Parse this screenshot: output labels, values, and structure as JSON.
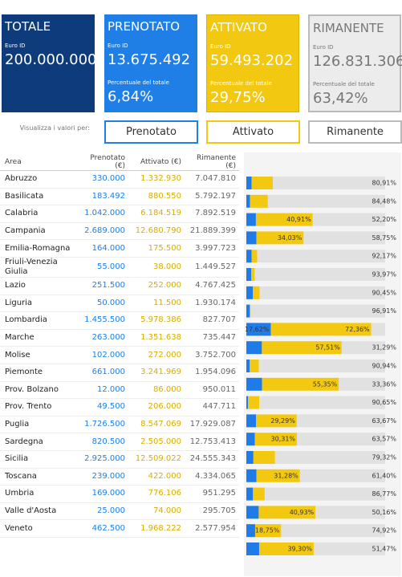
{
  "cards": [
    {
      "title": "TOTALE",
      "unit": "Euro ID",
      "value": "200.000.000"
    },
    {
      "title": "PRENOTATO",
      "unit": "Euro ID",
      "value": "13.675.492",
      "pct_label": "Percentuale del totale",
      "pct": "6,84%"
    },
    {
      "title": "ATTIVATO",
      "unit": "Euro ID",
      "value": "59.493.202",
      "pct_label": "Percentuale del totale",
      "pct": "29,75%"
    },
    {
      "title": "RIMANENTE",
      "unit": "Euro ID",
      "value": "126.831.306",
      "pct_label": "Percentuale del totale",
      "pct": "63,42%"
    }
  ],
  "selector": {
    "label": "Visualizza i valori per:",
    "buttons": [
      "Prenotato",
      "Attivato",
      "Rimanente"
    ]
  },
  "table": {
    "columns": [
      "Area",
      "Prenotato (€)",
      "Attivato (€)",
      "Rimanente (€)"
    ],
    "rows": [
      {
        "area": "Abruzzo",
        "prenotato": "330.000",
        "attivato": "1.332.930",
        "rimanente": "7.047.810",
        "rimanente_pct": "80,91%"
      },
      {
        "area": "Basilicata",
        "prenotato": "183.492",
        "attivato": "880.550",
        "rimanente": "5.792.197",
        "rimanente_pct": "84,48%"
      },
      {
        "area": "Calabria",
        "prenotato": "1.042.000",
        "attivato": "6.184.519",
        "rimanente": "7.892.519",
        "attivato_pct": "40,91%",
        "rimanente_pct": "52,20%"
      },
      {
        "area": "Campania",
        "prenotato": "2.689.000",
        "attivato": "12.680.790",
        "rimanente": "21.889.399",
        "attivato_pct": "34,03%",
        "rimanente_pct": "58,75%"
      },
      {
        "area": "Emilia-Romagna",
        "prenotato": "164.000",
        "attivato": "175.500",
        "rimanente": "3.997.723",
        "rimanente_pct": "92,17%"
      },
      {
        "area": "Friuli-Venezia Giulia",
        "prenotato": "55.000",
        "attivato": "38.000",
        "rimanente": "1.449.527",
        "rimanente_pct": "93,97%"
      },
      {
        "area": "Lazio",
        "prenotato": "251.500",
        "attivato": "252.000",
        "rimanente": "4.767.425",
        "rimanente_pct": "90,45%"
      },
      {
        "area": "Liguria",
        "prenotato": "50.000",
        "attivato": "11.500",
        "rimanente": "1.930.174",
        "rimanente_pct": "96,91%"
      },
      {
        "area": "Lombardia",
        "prenotato": "1.455.500",
        "attivato": "5.978.386",
        "rimanente": "827.707",
        "prenotato_pct": "17,62%",
        "attivato_pct": "72,36%"
      },
      {
        "area": "Marche",
        "prenotato": "263.000",
        "attivato": "1.351.638",
        "rimanente": "735.447",
        "attivato_pct": "57,51%",
        "rimanente_pct": "31,29%"
      },
      {
        "area": "Molise",
        "prenotato": "102.000",
        "attivato": "272.000",
        "rimanente": "3.752.700",
        "rimanente_pct": "90,94%"
      },
      {
        "area": "Piemonte",
        "prenotato": "661.000",
        "attivato": "3.241.969",
        "rimanente": "1.954.096",
        "attivato_pct": "55,35%",
        "rimanente_pct": "33,36%"
      },
      {
        "area": "Prov. Bolzano",
        "prenotato": "12.000",
        "attivato": "86.000",
        "rimanente": "950.011",
        "rimanente_pct": "90,65%"
      },
      {
        "area": "Prov. Trento",
        "prenotato": "49.500",
        "attivato": "206.000",
        "rimanente": "447.711",
        "attivato_pct": "29,29%",
        "rimanente_pct": "63,67%"
      },
      {
        "area": "Puglia",
        "prenotato": "1.726.500",
        "attivato": "8.547.069",
        "rimanente": "17.929.087",
        "attivato_pct": "30,31%",
        "rimanente_pct": "63,57%"
      },
      {
        "area": "Sardegna",
        "prenotato": "820.500",
        "attivato": "2.505.000",
        "rimanente": "12.753.413",
        "rimanente_pct": "79,32%"
      },
      {
        "area": "Sicilia",
        "prenotato": "2.925.000",
        "attivato": "12.509.022",
        "rimanente": "24.555.343",
        "attivato_pct": "31,28%",
        "rimanente_pct": "61,40%"
      },
      {
        "area": "Toscana",
        "prenotato": "239.000",
        "attivato": "422.000",
        "rimanente": "4.334.065",
        "rimanente_pct": "86,77%"
      },
      {
        "area": "Umbria",
        "prenotato": "169.000",
        "attivato": "776.106",
        "rimanente": "951.295",
        "attivato_pct": "40,93%",
        "rimanente_pct": "50,16%"
      },
      {
        "area": "Valle d'Aosta",
        "prenotato": "25.000",
        "attivato": "74.000",
        "rimanente": "295.705",
        "attivato_pct": "18,75%",
        "rimanente_pct": "74,92%"
      },
      {
        "area": "Veneto",
        "prenotato": "462.500",
        "attivato": "1.968.222",
        "rimanente": "2.577.954",
        "attivato_pct": "39,30%",
        "rimanente_pct": "51,47%"
      }
    ]
  }
}
